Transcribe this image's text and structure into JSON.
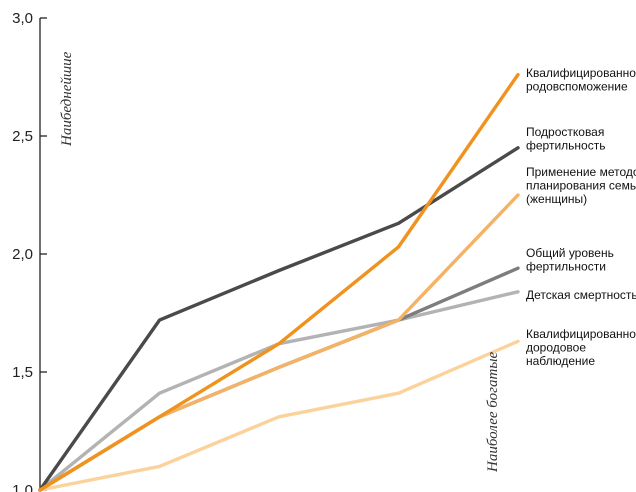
{
  "chart_data": {
    "type": "line",
    "title": "",
    "xlabel": "",
    "ylabel": "",
    "ylim": [
      1.0,
      3.0
    ],
    "yticks": [
      "1,0",
      "1,5",
      "2,0",
      "2,5",
      "3,0"
    ],
    "ytick_values": [
      1.0,
      1.5,
      2.0,
      2.5,
      3.0
    ],
    "x": [
      1,
      2,
      3,
      4,
      5
    ],
    "grid": false,
    "annotations": {
      "poorest": "Наибеднейшие",
      "richest": "Наиболее богатые"
    },
    "series": [
      {
        "name": "Квалифицированное родовспоможение",
        "label_lines": [
          "Квалифицированное",
          "родовспоможение"
        ],
        "color": "#f0921e",
        "values": [
          1.0,
          1.31,
          1.62,
          2.03,
          2.76
        ]
      },
      {
        "name": "Подростковая фертильность",
        "label_lines": [
          "Подростковая",
          "фертильность"
        ],
        "color": "#4a4a4a",
        "values": [
          1.0,
          1.72,
          1.93,
          2.13,
          2.45
        ]
      },
      {
        "name": "Применение методов планирования семьи (женщины)",
        "label_lines": [
          "Применение методов",
          "планирования семьи",
          "(женщины)"
        ],
        "color": "#f5b264",
        "values": [
          1.0,
          1.31,
          1.52,
          1.72,
          2.25
        ]
      },
      {
        "name": "Общий уровень фертильности",
        "label_lines": [
          "Общий уровень",
          "фертильности"
        ],
        "color": "#7d7d7d",
        "values": [
          1.0,
          1.31,
          1.52,
          1.72,
          1.94
        ]
      },
      {
        "name": "Детская смертность",
        "label_lines": [
          "Детская смертность"
        ],
        "color": "#b3b3b3",
        "values": [
          1.0,
          1.41,
          1.62,
          1.72,
          1.84
        ]
      },
      {
        "name": "Квалифицированное дородовое наблюдение",
        "label_lines": [
          "Квалифицированное",
          "дородовое",
          "наблюдение"
        ],
        "color": "#fcd29c",
        "values": [
          1.0,
          1.1,
          1.31,
          1.41,
          1.63
        ]
      }
    ]
  }
}
